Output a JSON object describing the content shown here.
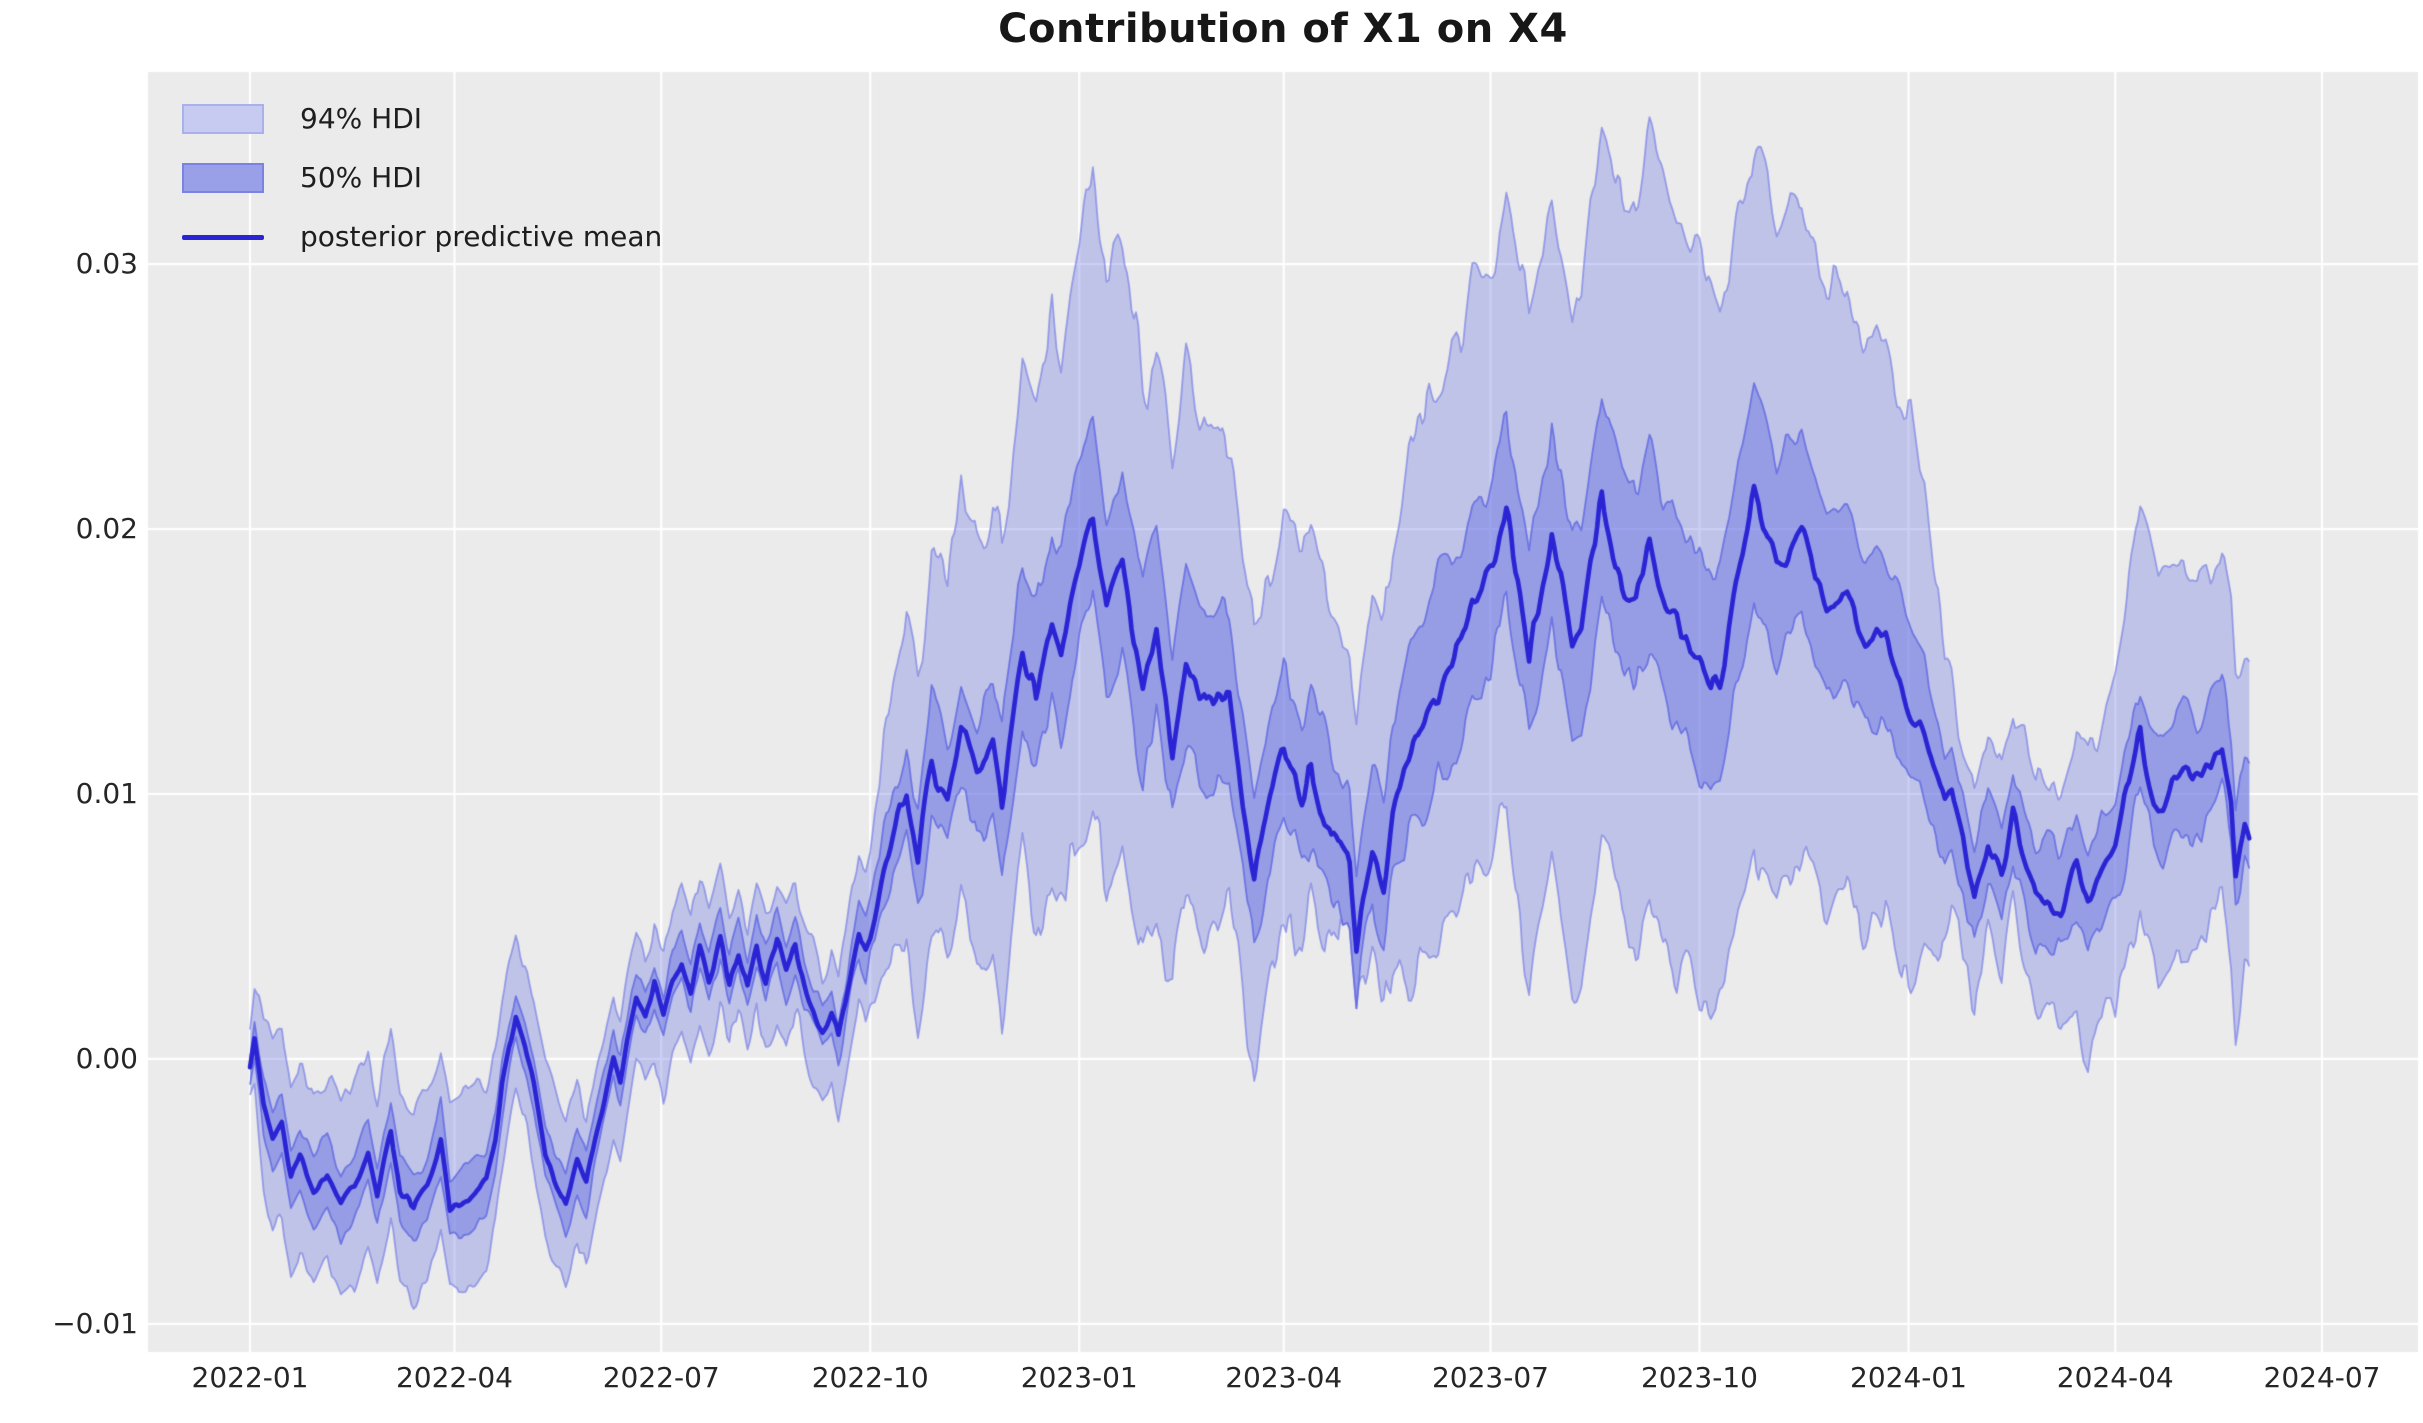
{
  "chart_data": {
    "type": "area",
    "title": "Contribution of X1 on X4",
    "legend": [
      {
        "label": "94% HDI",
        "swatch": "band-94"
      },
      {
        "label": "50% HDI",
        "swatch": "band-50"
      },
      {
        "label": "posterior predictive mean",
        "swatch": "line"
      }
    ],
    "x_axis": {
      "ticks": [
        {
          "label": "2022-01",
          "t": 0
        },
        {
          "label": "2022-04",
          "t": 90
        },
        {
          "label": "2022-07",
          "t": 181
        },
        {
          "label": "2022-10",
          "t": 273
        },
        {
          "label": "2023-01",
          "t": 365
        },
        {
          "label": "2023-04",
          "t": 455
        },
        {
          "label": "2023-07",
          "t": 546
        },
        {
          "label": "2023-10",
          "t": 638
        },
        {
          "label": "2024-01",
          "t": 730
        },
        {
          "label": "2024-04",
          "t": 821
        },
        {
          "label": "2024-07",
          "t": 912
        }
      ],
      "t_unit": "days-since-2022-01-01"
    },
    "y_axis": {
      "ticks": [
        {
          "label": "0.03",
          "v": 0.03
        },
        {
          "label": "0.02",
          "v": 0.02
        },
        {
          "label": "0.01",
          "v": 0.01
        },
        {
          "label": "0.00",
          "v": 0.0
        },
        {
          "label": "−0.01",
          "v": -0.01
        }
      ],
      "ylim": [
        -0.01106,
        0.03725
      ],
      "grid": true
    },
    "series": {
      "t_data_start": 0,
      "t_data_end": 880,
      "mean_keypoints": [
        [
          0,
          -0.0003
        ],
        [
          2,
          0.0008
        ],
        [
          6,
          -0.0018
        ],
        [
          10,
          -0.003
        ],
        [
          14,
          -0.0024
        ],
        [
          18,
          -0.0045
        ],
        [
          22,
          -0.0038
        ],
        [
          28,
          -0.005
        ],
        [
          34,
          -0.0042
        ],
        [
          40,
          -0.0055
        ],
        [
          46,
          -0.0048
        ],
        [
          52,
          -0.0035
        ],
        [
          56,
          -0.0052
        ],
        [
          62,
          -0.0028
        ],
        [
          66,
          -0.005
        ],
        [
          72,
          -0.0056
        ],
        [
          78,
          -0.0048
        ],
        [
          84,
          -0.003
        ],
        [
          88,
          -0.0055
        ],
        [
          96,
          -0.0052
        ],
        [
          104,
          -0.0045
        ],
        [
          108,
          -0.003
        ],
        [
          111,
          -0.001
        ],
        [
          114,
          0.0005
        ],
        [
          117,
          0.0017
        ],
        [
          121,
          0.0005
        ],
        [
          125,
          -0.001
        ],
        [
          130,
          -0.0035
        ],
        [
          135,
          -0.0048
        ],
        [
          139,
          -0.0057
        ],
        [
          144,
          -0.004
        ],
        [
          148,
          -0.0048
        ],
        [
          152,
          -0.003
        ],
        [
          156,
          -0.0015
        ],
        [
          160,
          0
        ],
        [
          163,
          -0.0008
        ],
        [
          166,
          0.0008
        ],
        [
          170,
          0.0024
        ],
        [
          174,
          0.0016
        ],
        [
          178,
          0.0027
        ],
        [
          182,
          0.0014
        ],
        [
          186,
          0.003
        ],
        [
          190,
          0.0038
        ],
        [
          194,
          0.0026
        ],
        [
          198,
          0.0042
        ],
        [
          202,
          0.003
        ],
        [
          207,
          0.0045
        ],
        [
          211,
          0.0028
        ],
        [
          215,
          0.004
        ],
        [
          219,
          0.0026
        ],
        [
          223,
          0.0043
        ],
        [
          227,
          0.003
        ],
        [
          232,
          0.0044
        ],
        [
          236,
          0.0032
        ],
        [
          240,
          0.0042
        ],
        [
          244,
          0.0028
        ],
        [
          248,
          0.002
        ],
        [
          252,
          0.0012
        ],
        [
          256,
          0.0018
        ],
        [
          259,
          0.0006
        ],
        [
          262,
          0.002
        ],
        [
          265,
          0.0035
        ],
        [
          268,
          0.0048
        ],
        [
          271,
          0.004
        ],
        [
          274,
          0.0052
        ],
        [
          278,
          0.0068
        ],
        [
          282,
          0.008
        ],
        [
          286,
          0.0092
        ],
        [
          289,
          0.0102
        ],
        [
          294,
          0.0076
        ],
        [
          300,
          0.0113
        ],
        [
          307,
          0.0098
        ],
        [
          313,
          0.0125
        ],
        [
          320,
          0.0106
        ],
        [
          327,
          0.0119
        ],
        [
          331,
          0.0095
        ],
        [
          336,
          0.013
        ],
        [
          340,
          0.0159
        ],
        [
          346,
          0.0136
        ],
        [
          353,
          0.0166
        ],
        [
          357,
          0.0151
        ],
        [
          362,
          0.0175
        ],
        [
          366,
          0.019
        ],
        [
          371,
          0.0206
        ],
        [
          377,
          0.0171
        ],
        [
          384,
          0.019
        ],
        [
          393,
          0.014
        ],
        [
          399,
          0.0159
        ],
        [
          406,
          0.0118
        ],
        [
          412,
          0.0153
        ],
        [
          421,
          0.0132
        ],
        [
          431,
          0.0133
        ],
        [
          442,
          0.0067
        ],
        [
          448,
          0.0095
        ],
        [
          455,
          0.0119
        ],
        [
          463,
          0.01
        ],
        [
          467,
          0.011
        ],
        [
          476,
          0.0084
        ],
        [
          484,
          0.0076
        ],
        [
          487,
          0.0045
        ],
        [
          494,
          0.0084
        ],
        [
          499,
          0.007
        ],
        [
          503,
          0.0095
        ],
        [
          511,
          0.0115
        ],
        [
          520,
          0.0135
        ],
        [
          526,
          0.0147
        ],
        [
          533,
          0.0155
        ],
        [
          538,
          0.0168
        ],
        [
          543,
          0.0175
        ],
        [
          547,
          0.0183
        ],
        [
          553,
          0.0207
        ],
        [
          563,
          0.0152
        ],
        [
          573,
          0.02
        ],
        [
          582,
          0.0155
        ],
        [
          586,
          0.016
        ],
        [
          595,
          0.0211
        ],
        [
          604,
          0.0182
        ],
        [
          610,
          0.0172
        ],
        [
          616,
          0.019
        ],
        [
          625,
          0.0166
        ],
        [
          633,
          0.0157
        ],
        [
          643,
          0.0141
        ],
        [
          647,
          0.0144
        ],
        [
          654,
          0.018
        ],
        [
          662,
          0.0213
        ],
        [
          672,
          0.0186
        ],
        [
          683,
          0.02
        ],
        [
          694,
          0.0172
        ],
        [
          703,
          0.0176
        ],
        [
          711,
          0.0159
        ],
        [
          720,
          0.0157
        ],
        [
          727,
          0.0138
        ],
        [
          735,
          0.0127
        ],
        [
          746,
          0.0095
        ],
        [
          749,
          0.01
        ],
        [
          759,
          0.006
        ],
        [
          765,
          0.0086
        ],
        [
          771,
          0.0068
        ],
        [
          776,
          0.0094
        ],
        [
          786,
          0.0059
        ],
        [
          791,
          0.0062
        ],
        [
          797,
          0.0058
        ],
        [
          804,
          0.007
        ],
        [
          809,
          0.0058
        ],
        [
          815,
          0.0072
        ],
        [
          821,
          0.0079
        ],
        [
          832,
          0.0121
        ],
        [
          840,
          0.0095
        ],
        [
          851,
          0.011
        ],
        [
          859,
          0.0105
        ],
        [
          868,
          0.0121
        ],
        [
          872,
          0.01
        ],
        [
          874,
          0.0074
        ],
        [
          878,
          0.0092
        ],
        [
          880,
          0.0084
        ]
      ],
      "hdi50_upper_offset": [
        [
          0,
          0.0005
        ],
        [
          8,
          0.0012
        ],
        [
          100,
          0.0012
        ],
        [
          117,
          0.0009
        ],
        [
          139,
          0.0013
        ],
        [
          160,
          0.001
        ],
        [
          270,
          0.001
        ],
        [
          290,
          0.0019
        ],
        [
          340,
          0.003
        ],
        [
          371,
          0.0038
        ],
        [
          430,
          0.0034
        ],
        [
          487,
          0.0026
        ],
        [
          520,
          0.0038
        ],
        [
          600,
          0.004
        ],
        [
          662,
          0.004
        ],
        [
          730,
          0.003
        ],
        [
          752,
          0.0021
        ],
        [
          790,
          0.0017
        ],
        [
          821,
          0.0022
        ],
        [
          862,
          0.0024
        ],
        [
          880,
          0.002
        ]
      ],
      "hdi50_lower_offset": [
        [
          0,
          0.0005
        ],
        [
          8,
          0.0013
        ],
        [
          100,
          0.0013
        ],
        [
          117,
          0.0009
        ],
        [
          139,
          0.0012
        ],
        [
          160,
          0.0009
        ],
        [
          270,
          0.0009
        ],
        [
          290,
          0.0018
        ],
        [
          340,
          0.0028
        ],
        [
          371,
          0.0036
        ],
        [
          430,
          0.003
        ],
        [
          487,
          0.0021
        ],
        [
          520,
          0.0034
        ],
        [
          600,
          0.0037
        ],
        [
          662,
          0.0038
        ],
        [
          730,
          0.0029
        ],
        [
          752,
          0.0018
        ],
        [
          790,
          0.0015
        ],
        [
          821,
          0.002
        ],
        [
          862,
          0.0022
        ],
        [
          880,
          0.0019
        ]
      ],
      "hdi94_upper_offset": [
        [
          0,
          0.0013
        ],
        [
          8,
          0.0037
        ],
        [
          100,
          0.0037
        ],
        [
          117,
          0.0026
        ],
        [
          139,
          0.0032
        ],
        [
          160,
          0.0024
        ],
        [
          270,
          0.0024
        ],
        [
          290,
          0.0068
        ],
        [
          340,
          0.0098
        ],
        [
          371,
          0.0125
        ],
        [
          400,
          0.0108
        ],
        [
          430,
          0.0098
        ],
        [
          487,
          0.0082
        ],
        [
          520,
          0.0118
        ],
        [
          595,
          0.0136
        ],
        [
          620,
          0.0158
        ],
        [
          662,
          0.0132
        ],
        [
          700,
          0.012
        ],
        [
          730,
          0.0108
        ],
        [
          752,
          0.0044
        ],
        [
          790,
          0.0041
        ],
        [
          815,
          0.0058
        ],
        [
          832,
          0.0089
        ],
        [
          862,
          0.0078
        ],
        [
          880,
          0.0057
        ]
      ],
      "hdi94_lower_offset": [
        [
          0,
          0.0013
        ],
        [
          8,
          0.0035
        ],
        [
          100,
          0.0035
        ],
        [
          117,
          0.0029
        ],
        [
          139,
          0.0032
        ],
        [
          160,
          0.0026
        ],
        [
          270,
          0.0026
        ],
        [
          290,
          0.0057
        ],
        [
          340,
          0.0082
        ],
        [
          371,
          0.0113
        ],
        [
          400,
          0.0098
        ],
        [
          430,
          0.0082
        ],
        [
          487,
          0.0033
        ],
        [
          520,
          0.0098
        ],
        [
          595,
          0.0132
        ],
        [
          662,
          0.0128
        ],
        [
          700,
          0.0112
        ],
        [
          730,
          0.0098
        ],
        [
          752,
          0.0041
        ],
        [
          790,
          0.0037
        ],
        [
          821,
          0.0068
        ],
        [
          862,
          0.0065
        ],
        [
          880,
          0.006
        ]
      ],
      "noise_amp_mean": [
        [
          0,
          0.0003
        ],
        [
          100,
          0.00038
        ],
        [
          110,
          0.0003
        ],
        [
          160,
          0.00035
        ],
        [
          270,
          0.00045
        ],
        [
          285,
          0.00075
        ],
        [
          340,
          0.00085
        ],
        [
          430,
          0.00085
        ],
        [
          500,
          0.0009
        ],
        [
          740,
          0.00065
        ],
        [
          800,
          0.0006
        ],
        [
          880,
          0.00075
        ]
      ]
    },
    "colors": {
      "axes_background": "#ebebeb",
      "figure_background": "#ffffff",
      "grid": "#ffffff",
      "band_base": "#6a74e2",
      "band94_fill_alpha": 0.34,
      "band94_edge": "rgba(122,130,230,0.7)",
      "band50_fill_alpha": 0.48,
      "band50_edge": "rgba(100,108,226,0.85)",
      "mean_line": "#2a24d4",
      "tick_text": "#262626",
      "title_text": "#171717",
      "legend_swatch94_fill": "#c7cbf1",
      "legend_swatch94_edge": "#aab0ec",
      "legend_swatch50_fill": "#9aa0e8",
      "legend_swatch50_edge": "#7b83e2"
    }
  }
}
